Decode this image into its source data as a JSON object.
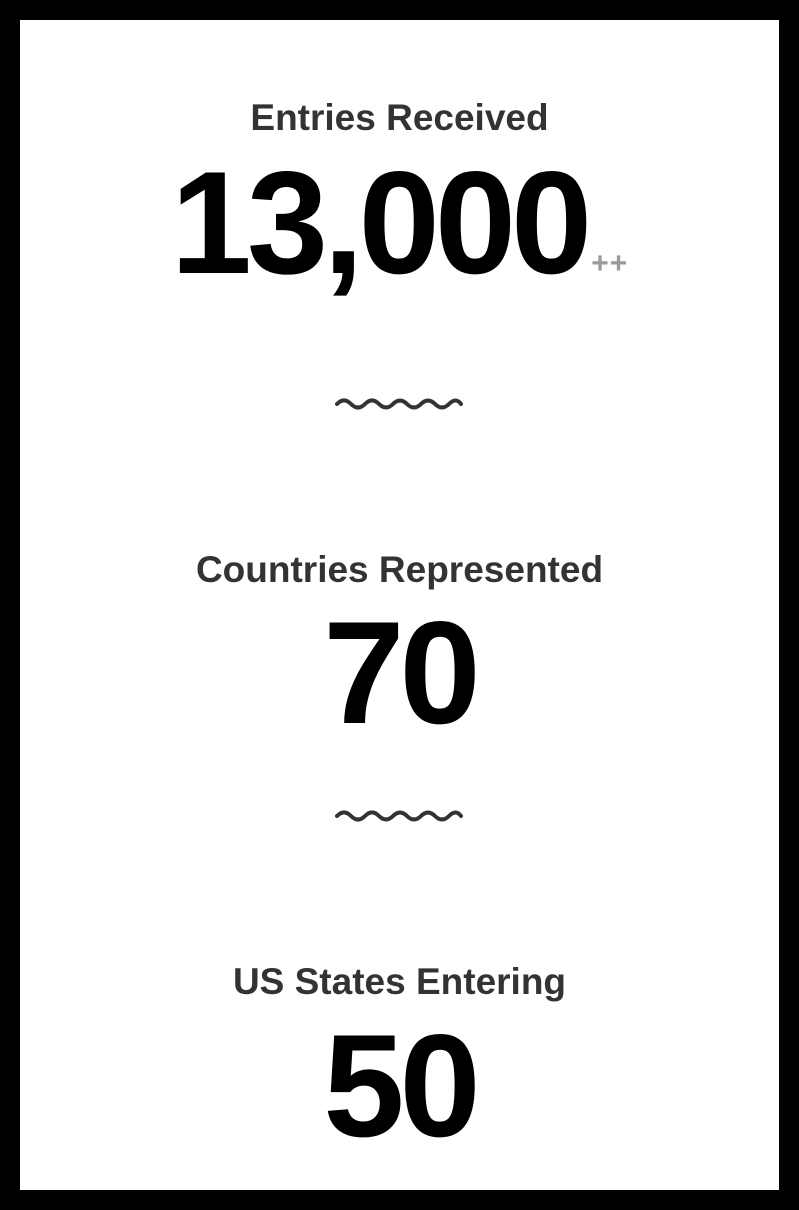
{
  "stats": [
    {
      "label": "Entries Received",
      "value": "13,000",
      "suffix": "++"
    },
    {
      "label": "Countries Represented",
      "value": "70",
      "suffix": ""
    },
    {
      "label": "US States Entering",
      "value": "50",
      "suffix": ""
    }
  ],
  "icons": {
    "divider": "wavy-divider-icon"
  },
  "colors": {
    "frame": "#000000",
    "panel": "#ffffff",
    "label": "#333333",
    "value": "#000000",
    "suffix": "#999999",
    "divider": "#333333"
  }
}
